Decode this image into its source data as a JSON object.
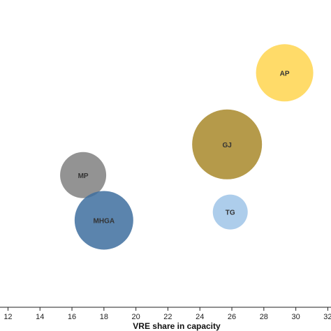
{
  "chart_data": {
    "type": "scatter",
    "title": "",
    "xlabel": "VRE share in capacity",
    "ylabel": "",
    "xlim": [
      11.5,
      32.2
    ],
    "ylim": [
      0,
      100
    ],
    "x_ticks": [
      12,
      14,
      16,
      18,
      20,
      22,
      24,
      26,
      28,
      30,
      32
    ],
    "x_tick_labels": [
      "12",
      "14",
      "16",
      "18",
      "20",
      "22",
      "24",
      "26",
      "28",
      "30",
      "32"
    ],
    "grid": false,
    "legend": "none",
    "points": [
      {
        "label": "AP",
        "x": 29.3,
        "y": 76.3,
        "size": 41,
        "color": "#ffd54f"
      },
      {
        "label": "GJ",
        "x": 25.7,
        "y": 53.0,
        "size": 50,
        "color": "#a8882a"
      },
      {
        "label": "MP",
        "x": 16.7,
        "y": 43.0,
        "size": 33,
        "color": "#808080"
      },
      {
        "label": "MHGA",
        "x": 18.0,
        "y": 28.3,
        "size": 42,
        "color": "#3e6f9f"
      },
      {
        "label": "TG",
        "x": 25.9,
        "y": 31.0,
        "size": 25,
        "color": "#9fc4e8"
      }
    ]
  }
}
